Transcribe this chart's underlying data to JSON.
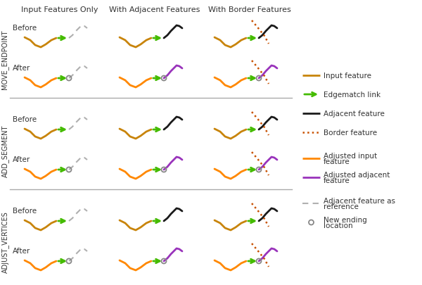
{
  "bg_color": "#ffffff",
  "col_headers": [
    "Input Features Only",
    "With Adjacent Features",
    "With Border Features"
  ],
  "row_labels": [
    "MOVE_ENDPOINT",
    "ADD_SEGMENT",
    "ADJUST_VERTICES"
  ],
  "input_color": "#c8840a",
  "adj_color": "#1a1a1a",
  "border_color": "#c85000",
  "link_color": "#44bb00",
  "adj_input_color": "#ff8800",
  "adj_adj_color": "#9933bb",
  "ref_color": "#b0b0b0",
  "circle_color": "#888888",
  "sep_color": "#aaaaaa",
  "text_color": "#333333",
  "header_fs": 8,
  "label_fs": 7.5,
  "rowlabel_fs": 7,
  "legend_fs": 7.5
}
